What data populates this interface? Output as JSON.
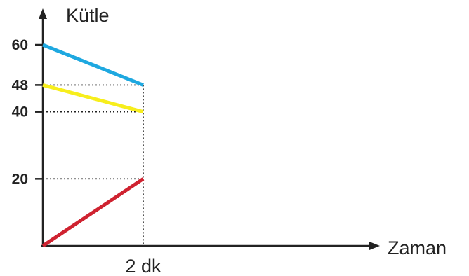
{
  "chart_data": {
    "type": "line",
    "ylabel": "Kütle",
    "xlabel": "Zaman",
    "x_ticks": [
      {
        "value": 2,
        "label": "2 dk"
      }
    ],
    "y_ticks": [
      {
        "value": 20,
        "label": "20"
      },
      {
        "value": 40,
        "label": "40"
      },
      {
        "value": 48,
        "label": "48"
      },
      {
        "value": 60,
        "label": "60"
      }
    ],
    "xlim": [
      0,
      2
    ],
    "ylim": [
      0,
      60
    ],
    "grid": false,
    "series": [
      {
        "color": "#1ea8e0",
        "points": [
          [
            0,
            60
          ],
          [
            2,
            48
          ]
        ]
      },
      {
        "color": "#f7ee1c",
        "points": [
          [
            0,
            48
          ],
          [
            2,
            40
          ]
        ]
      },
      {
        "color": "#cf2230",
        "points": [
          [
            0,
            0
          ],
          [
            2,
            20
          ]
        ]
      }
    ]
  }
}
